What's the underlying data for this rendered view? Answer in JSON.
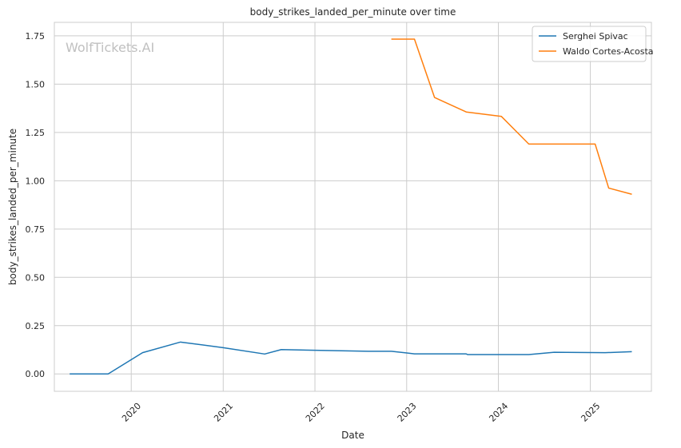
{
  "chart_data": {
    "type": "line",
    "title": "body_strikes_landed_per_minute over time",
    "xlabel": "Date",
    "ylabel": "body_strikes_landed_per_minute",
    "watermark": "WolfTickets.AI",
    "x_ticks": [
      "2020",
      "2021",
      "2022",
      "2023",
      "2024",
      "2025"
    ],
    "y_ticks": [
      "0.00",
      "0.25",
      "0.50",
      "0.75",
      "1.00",
      "1.25",
      "1.50",
      "1.75"
    ],
    "xlim": [
      "2019-03-01",
      "2025-09-01"
    ],
    "ylim": [
      -0.09,
      1.82
    ],
    "grid": true,
    "legend_position": "top-right",
    "series": [
      {
        "name": "Serghei Spivac",
        "color": "#1f77b4",
        "points": [
          [
            "2019-05-01",
            0.0
          ],
          [
            "2019-10-01",
            0.0
          ],
          [
            "2020-02-15",
            0.11
          ],
          [
            "2020-07-15",
            0.165
          ],
          [
            "2021-01-01",
            0.136
          ],
          [
            "2021-06-15",
            0.103
          ],
          [
            "2021-08-20",
            0.126
          ],
          [
            "2022-08-01",
            0.117
          ],
          [
            "2022-11-01",
            0.117
          ],
          [
            "2023-02-01",
            0.104
          ],
          [
            "2023-08-25",
            0.104
          ],
          [
            "2023-09-01",
            0.1
          ],
          [
            "2024-05-01",
            0.1
          ],
          [
            "2024-08-10",
            0.112
          ],
          [
            "2025-03-01",
            0.11
          ],
          [
            "2025-06-15",
            0.115
          ]
        ]
      },
      {
        "name": "Waldo Cortes-Acosta",
        "color": "#ff7f0e",
        "points": [
          [
            "2022-11-01",
            1.733
          ],
          [
            "2023-02-01",
            1.733
          ],
          [
            "2023-04-22",
            1.431
          ],
          [
            "2023-08-26",
            1.356
          ],
          [
            "2024-01-13",
            1.333
          ],
          [
            "2024-05-01",
            1.19
          ],
          [
            "2025-01-20",
            1.19
          ],
          [
            "2025-03-15",
            0.962
          ],
          [
            "2025-06-15",
            0.93
          ]
        ]
      }
    ]
  }
}
